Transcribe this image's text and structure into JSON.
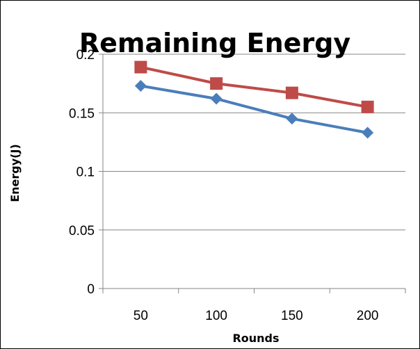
{
  "chart_data": {
    "type": "line",
    "title": "Remaining Energy",
    "xlabel": "Rounds",
    "ylabel": "Energy(J)",
    "categories": [
      "50",
      "100",
      "150",
      "200"
    ],
    "ylim": [
      0,
      0.2
    ],
    "yticks": [
      "0",
      "0.05",
      "0.1",
      "0.15",
      "0.2"
    ],
    "grid": true,
    "legend": "none",
    "series": [
      {
        "color": "#4a7ebb",
        "marker": "diamond",
        "values": [
          0.173,
          0.162,
          0.145,
          0.133
        ]
      },
      {
        "color": "#be4b48",
        "marker": "square",
        "values": [
          0.189,
          0.175,
          0.167,
          0.155
        ]
      }
    ]
  }
}
